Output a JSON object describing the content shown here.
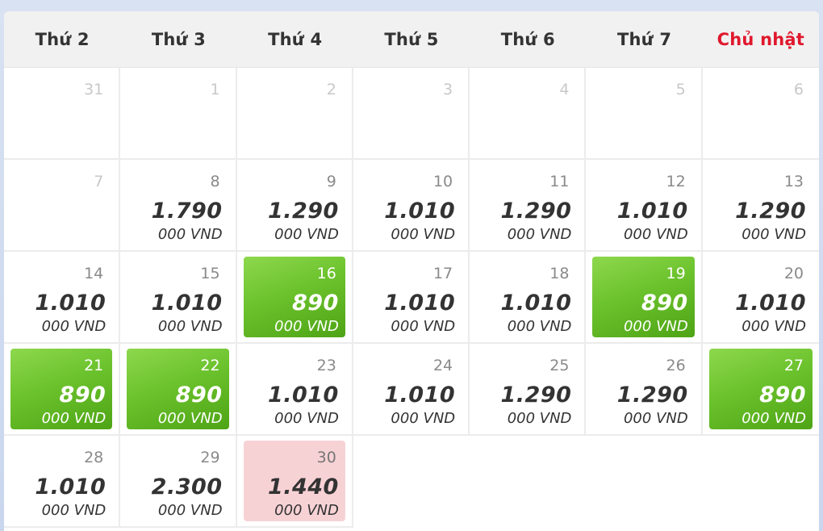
{
  "weekdays": [
    "Thứ 2",
    "Thứ 3",
    "Thứ 4",
    "Thứ 5",
    "Thứ 6",
    "Thứ 7",
    "Chủ nhật"
  ],
  "colors": {
    "cheapest": "#6bc22c",
    "expensive": "#f7d2d5",
    "sunday": "#e0182d"
  },
  "days": [
    {
      "day": "31",
      "price": "",
      "unit": "",
      "state": "muted"
    },
    {
      "day": "1",
      "price": "",
      "unit": "",
      "state": "muted"
    },
    {
      "day": "2",
      "price": "",
      "unit": "",
      "state": "muted"
    },
    {
      "day": "3",
      "price": "",
      "unit": "",
      "state": "muted"
    },
    {
      "day": "4",
      "price": "",
      "unit": "",
      "state": "muted"
    },
    {
      "day": "5",
      "price": "",
      "unit": "",
      "state": "muted"
    },
    {
      "day": "6",
      "price": "",
      "unit": "",
      "state": "muted"
    },
    {
      "day": "7",
      "price": "",
      "unit": "",
      "state": "muted"
    },
    {
      "day": "8",
      "price": "1.790",
      "unit": "000 VND",
      "state": "normal"
    },
    {
      "day": "9",
      "price": "1.290",
      "unit": "000 VND",
      "state": "normal"
    },
    {
      "day": "10",
      "price": "1.010",
      "unit": "000 VND",
      "state": "normal"
    },
    {
      "day": "11",
      "price": "1.290",
      "unit": "000 VND",
      "state": "normal"
    },
    {
      "day": "12",
      "price": "1.010",
      "unit": "000 VND",
      "state": "normal"
    },
    {
      "day": "13",
      "price": "1.290",
      "unit": "000 VND",
      "state": "normal"
    },
    {
      "day": "14",
      "price": "1.010",
      "unit": "000 VND",
      "state": "normal"
    },
    {
      "day": "15",
      "price": "1.010",
      "unit": "000 VND",
      "state": "normal"
    },
    {
      "day": "16",
      "price": "890",
      "unit": "000 VND",
      "state": "cheap"
    },
    {
      "day": "17",
      "price": "1.010",
      "unit": "000 VND",
      "state": "normal"
    },
    {
      "day": "18",
      "price": "1.010",
      "unit": "000 VND",
      "state": "normal"
    },
    {
      "day": "19",
      "price": "890",
      "unit": "000 VND",
      "state": "cheap"
    },
    {
      "day": "20",
      "price": "1.010",
      "unit": "000 VND",
      "state": "normal"
    },
    {
      "day": "21",
      "price": "890",
      "unit": "000 VND",
      "state": "cheap"
    },
    {
      "day": "22",
      "price": "890",
      "unit": "000 VND",
      "state": "cheap"
    },
    {
      "day": "23",
      "price": "1.010",
      "unit": "000 VND",
      "state": "normal"
    },
    {
      "day": "24",
      "price": "1.010",
      "unit": "000 VND",
      "state": "normal"
    },
    {
      "day": "25",
      "price": "1.290",
      "unit": "000 VND",
      "state": "normal"
    },
    {
      "day": "26",
      "price": "1.290",
      "unit": "000 VND",
      "state": "normal"
    },
    {
      "day": "27",
      "price": "890",
      "unit": "000 VND",
      "state": "cheap"
    },
    {
      "day": "28",
      "price": "1.010",
      "unit": "000 VND",
      "state": "normal"
    },
    {
      "day": "29",
      "price": "2.300",
      "unit": "000 VND",
      "state": "normal"
    },
    {
      "day": "30",
      "price": "1.440",
      "unit": "000 VND",
      "state": "expensive"
    }
  ]
}
